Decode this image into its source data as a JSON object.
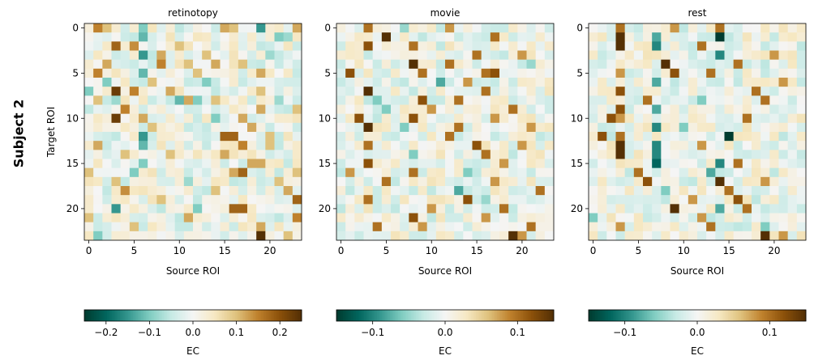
{
  "figure": {
    "row_label": "Subject 2"
  },
  "colors": {
    "cmap": [
      "#003c30",
      "#01665e",
      "#35978f",
      "#80cdc1",
      "#c7eae5",
      "#f5f5f5",
      "#f6e8c3",
      "#dfc27d",
      "#bf812d",
      "#8c510a",
      "#543005"
    ]
  },
  "chart_data": [
    {
      "type": "heatmap",
      "title": "retinotopy",
      "xlabel": "Source ROI",
      "ylabel": "Target ROI",
      "x_ticks": [
        "0",
        "5",
        "10",
        "15",
        "20"
      ],
      "y_ticks": [
        "0",
        "5",
        "10",
        "15",
        "20"
      ],
      "n_rois": 24,
      "vmin": -0.25,
      "vmax": 0.25,
      "colorbar": {
        "label": "EC",
        "ticks": [
          -0.2,
          -0.1,
          0.0,
          0.1,
          0.2
        ],
        "tick_labels": [
          "−0.2",
          "−0.1",
          "0.0",
          "0.1",
          "0.2"
        ]
      },
      "strong_cells": [
        [
          0,
          1,
          0.15
        ],
        [
          0,
          2,
          0.1
        ],
        [
          0,
          6,
          -0.1
        ],
        [
          0,
          15,
          0.12
        ],
        [
          0,
          16,
          0.1
        ],
        [
          0,
          19,
          -0.15
        ],
        [
          0,
          23,
          0.12
        ],
        [
          1,
          6,
          -0.12
        ],
        [
          1,
          21,
          -0.1
        ],
        [
          1,
          22,
          -0.08
        ],
        [
          2,
          3,
          0.18
        ],
        [
          2,
          5,
          0.14
        ],
        [
          2,
          10,
          0.1
        ],
        [
          3,
          6,
          -0.15
        ],
        [
          3,
          8,
          0.12
        ],
        [
          3,
          13,
          0.1
        ],
        [
          3,
          20,
          -0.08
        ],
        [
          4,
          2,
          0.12
        ],
        [
          4,
          8,
          0.15
        ],
        [
          4,
          11,
          0.1
        ],
        [
          4,
          14,
          0.12
        ],
        [
          4,
          17,
          0.1
        ],
        [
          5,
          1,
          0.15
        ],
        [
          5,
          6,
          -0.12
        ],
        [
          5,
          12,
          0.1
        ],
        [
          5,
          19,
          0.12
        ],
        [
          6,
          2,
          -0.1
        ],
        [
          6,
          7,
          0.1
        ],
        [
          6,
          13,
          -0.1
        ],
        [
          7,
          0,
          -0.1
        ],
        [
          7,
          3,
          0.23
        ],
        [
          7,
          5,
          0.15
        ],
        [
          7,
          9,
          0.12
        ],
        [
          7,
          19,
          0.1
        ],
        [
          8,
          1,
          0.1
        ],
        [
          8,
          3,
          -0.08
        ],
        [
          8,
          10,
          -0.12
        ],
        [
          8,
          11,
          0.12
        ],
        [
          8,
          12,
          -0.1
        ],
        [
          8,
          14,
          0.1
        ],
        [
          8,
          21,
          -0.08
        ],
        [
          9,
          4,
          0.15
        ],
        [
          9,
          19,
          0.12
        ],
        [
          9,
          23,
          0.1
        ],
        [
          10,
          3,
          0.23
        ],
        [
          10,
          6,
          0.12
        ],
        [
          10,
          14,
          -0.1
        ],
        [
          10,
          17,
          0.12
        ],
        [
          11,
          7,
          0.1
        ],
        [
          11,
          18,
          0.12
        ],
        [
          12,
          6,
          -0.15
        ],
        [
          12,
          15,
          0.18
        ],
        [
          12,
          16,
          0.18
        ],
        [
          12,
          20,
          0.1
        ],
        [
          13,
          1,
          0.12
        ],
        [
          13,
          6,
          -0.12
        ],
        [
          13,
          17,
          0.15
        ],
        [
          13,
          20,
          0.1
        ],
        [
          14,
          4,
          0.1
        ],
        [
          14,
          9,
          0.1
        ],
        [
          14,
          15,
          0.12
        ],
        [
          15,
          6,
          -0.1
        ],
        [
          15,
          18,
          0.12
        ],
        [
          15,
          19,
          0.12
        ],
        [
          16,
          0,
          0.1
        ],
        [
          16,
          5,
          -0.1
        ],
        [
          16,
          16,
          0.12
        ],
        [
          16,
          17,
          0.18
        ],
        [
          16,
          23,
          0.1
        ],
        [
          17,
          3,
          0.1
        ],
        [
          17,
          11,
          -0.08
        ],
        [
          17,
          21,
          0.1
        ],
        [
          18,
          4,
          0.14
        ],
        [
          18,
          14,
          0.1
        ],
        [
          18,
          22,
          0.12
        ],
        [
          19,
          8,
          0.1
        ],
        [
          19,
          23,
          0.18
        ],
        [
          20,
          3,
          -0.15
        ],
        [
          20,
          12,
          -0.1
        ],
        [
          20,
          16,
          0.18
        ],
        [
          20,
          17,
          0.18
        ],
        [
          21,
          0,
          0.1
        ],
        [
          21,
          11,
          0.12
        ],
        [
          21,
          23,
          0.15
        ],
        [
          22,
          5,
          0.1
        ],
        [
          22,
          19,
          0.12
        ],
        [
          23,
          1,
          -0.1
        ],
        [
          23,
          19,
          0.25
        ],
        [
          23,
          22,
          0.1
        ]
      ]
    },
    {
      "type": "heatmap",
      "title": "movie",
      "xlabel": "Source ROI",
      "ylabel": "",
      "x_ticks": [
        "0",
        "5",
        "10",
        "15",
        "20"
      ],
      "y_ticks": [
        "0",
        "5",
        "10",
        "15",
        "20"
      ],
      "n_rois": 24,
      "vmin": -0.15,
      "vmax": 0.15,
      "colorbar": {
        "label": "EC",
        "ticks": [
          -0.1,
          0.0,
          0.1
        ],
        "tick_labels": [
          "−0.1",
          "0.0",
          "0.1"
        ]
      },
      "strong_cells": [
        [
          0,
          3,
          0.1
        ],
        [
          0,
          7,
          -0.05
        ],
        [
          0,
          12,
          0.08
        ],
        [
          1,
          5,
          0.15
        ],
        [
          1,
          17,
          0.1
        ],
        [
          2,
          3,
          0.12
        ],
        [
          2,
          8,
          0.1
        ],
        [
          3,
          15,
          0.1
        ],
        [
          3,
          20,
          0.08
        ],
        [
          4,
          8,
          0.15
        ],
        [
          4,
          12,
          0.1
        ],
        [
          4,
          21,
          -0.05
        ],
        [
          5,
          1,
          0.12
        ],
        [
          5,
          9,
          0.1
        ],
        [
          5,
          16,
          0.1
        ],
        [
          5,
          17,
          0.12
        ],
        [
          6,
          11,
          -0.08
        ],
        [
          6,
          14,
          0.08
        ],
        [
          7,
          3,
          0.15
        ],
        [
          7,
          16,
          0.1
        ],
        [
          8,
          4,
          -0.06
        ],
        [
          8,
          9,
          0.12
        ],
        [
          8,
          13,
          0.1
        ],
        [
          9,
          5,
          -0.06
        ],
        [
          9,
          10,
          0.08
        ],
        [
          9,
          19,
          0.1
        ],
        [
          10,
          2,
          0.12
        ],
        [
          10,
          8,
          0.12
        ],
        [
          10,
          17,
          0.08
        ],
        [
          11,
          3,
          0.15
        ],
        [
          11,
          7,
          -0.06
        ],
        [
          11,
          13,
          0.1
        ],
        [
          11,
          21,
          0.08
        ],
        [
          12,
          12,
          0.1
        ],
        [
          13,
          3,
          0.1
        ],
        [
          13,
          15,
          0.12
        ],
        [
          13,
          20,
          0.08
        ],
        [
          14,
          8,
          -0.06
        ],
        [
          14,
          16,
          0.1
        ],
        [
          15,
          3,
          0.12
        ],
        [
          15,
          18,
          0.08
        ],
        [
          16,
          1,
          0.08
        ],
        [
          16,
          8,
          0.1
        ],
        [
          16,
          14,
          -0.06
        ],
        [
          17,
          5,
          0.1
        ],
        [
          17,
          17,
          0.08
        ],
        [
          18,
          13,
          -0.08
        ],
        [
          18,
          22,
          0.1
        ],
        [
          19,
          3,
          0.1
        ],
        [
          19,
          14,
          0.12
        ],
        [
          19,
          16,
          -0.05
        ],
        [
          20,
          10,
          0.08
        ],
        [
          20,
          18,
          0.1
        ],
        [
          21,
          8,
          0.12
        ],
        [
          21,
          16,
          0.08
        ],
        [
          22,
          4,
          0.1
        ],
        [
          22,
          9,
          0.08
        ],
        [
          22,
          21,
          0.1
        ],
        [
          23,
          19,
          0.15
        ],
        [
          23,
          20,
          0.08
        ]
      ]
    },
    {
      "type": "heatmap",
      "title": "rest",
      "xlabel": "Source ROI",
      "ylabel": "",
      "x_ticks": [
        "0",
        "5",
        "10",
        "15",
        "20"
      ],
      "y_ticks": [
        "0",
        "5",
        "10",
        "15",
        "20"
      ],
      "n_rois": 24,
      "vmin": -0.15,
      "vmax": 0.15,
      "colorbar": {
        "label": "EC",
        "ticks": [
          -0.1,
          0.0,
          0.1
        ],
        "tick_labels": [
          "−0.1",
          "0.0",
          "0.1"
        ]
      },
      "strong_cells": [
        [
          0,
          3,
          0.1
        ],
        [
          0,
          9,
          0.08
        ],
        [
          0,
          14,
          0.1
        ],
        [
          1,
          3,
          0.15
        ],
        [
          1,
          14,
          -0.15
        ],
        [
          1,
          7,
          -0.08
        ],
        [
          2,
          3,
          0.15
        ],
        [
          2,
          7,
          -0.1
        ],
        [
          2,
          12,
          0.1
        ],
        [
          3,
          14,
          -0.1
        ],
        [
          3,
          20,
          0.08
        ],
        [
          4,
          8,
          0.15
        ],
        [
          4,
          16,
          0.1
        ],
        [
          5,
          3,
          0.08
        ],
        [
          5,
          9,
          0.12
        ],
        [
          5,
          13,
          0.1
        ],
        [
          6,
          7,
          -0.08
        ],
        [
          6,
          21,
          0.08
        ],
        [
          7,
          3,
          0.12
        ],
        [
          7,
          18,
          0.1
        ],
        [
          8,
          6,
          0.1
        ],
        [
          8,
          12,
          -0.06
        ],
        [
          8,
          19,
          0.1
        ],
        [
          9,
          3,
          0.12
        ],
        [
          9,
          7,
          -0.08
        ],
        [
          10,
          2,
          0.12
        ],
        [
          10,
          3,
          0.08
        ],
        [
          10,
          17,
          0.1
        ],
        [
          11,
          7,
          -0.1
        ],
        [
          11,
          10,
          -0.06
        ],
        [
          12,
          1,
          0.12
        ],
        [
          12,
          3,
          0.1
        ],
        [
          12,
          15,
          -0.15
        ],
        [
          13,
          3,
          0.15
        ],
        [
          13,
          7,
          -0.1
        ],
        [
          13,
          12,
          0.08
        ],
        [
          14,
          3,
          0.15
        ],
        [
          14,
          7,
          -0.1
        ],
        [
          15,
          7,
          -0.12
        ],
        [
          15,
          14,
          -0.1
        ],
        [
          15,
          16,
          0.1
        ],
        [
          16,
          5,
          0.1
        ],
        [
          16,
          13,
          -0.08
        ],
        [
          17,
          6,
          0.12
        ],
        [
          17,
          14,
          0.15
        ],
        [
          17,
          19,
          0.08
        ],
        [
          18,
          8,
          -0.06
        ],
        [
          18,
          15,
          0.1
        ],
        [
          19,
          11,
          0.08
        ],
        [
          19,
          16,
          0.12
        ],
        [
          20,
          9,
          0.15
        ],
        [
          20,
          14,
          -0.08
        ],
        [
          20,
          17,
          0.1
        ],
        [
          21,
          0,
          -0.06
        ],
        [
          21,
          12,
          0.08
        ],
        [
          22,
          3,
          0.08
        ],
        [
          22,
          13,
          0.1
        ],
        [
          22,
          19,
          -0.06
        ],
        [
          23,
          19,
          0.15
        ],
        [
          23,
          21,
          0.08
        ]
      ]
    }
  ]
}
